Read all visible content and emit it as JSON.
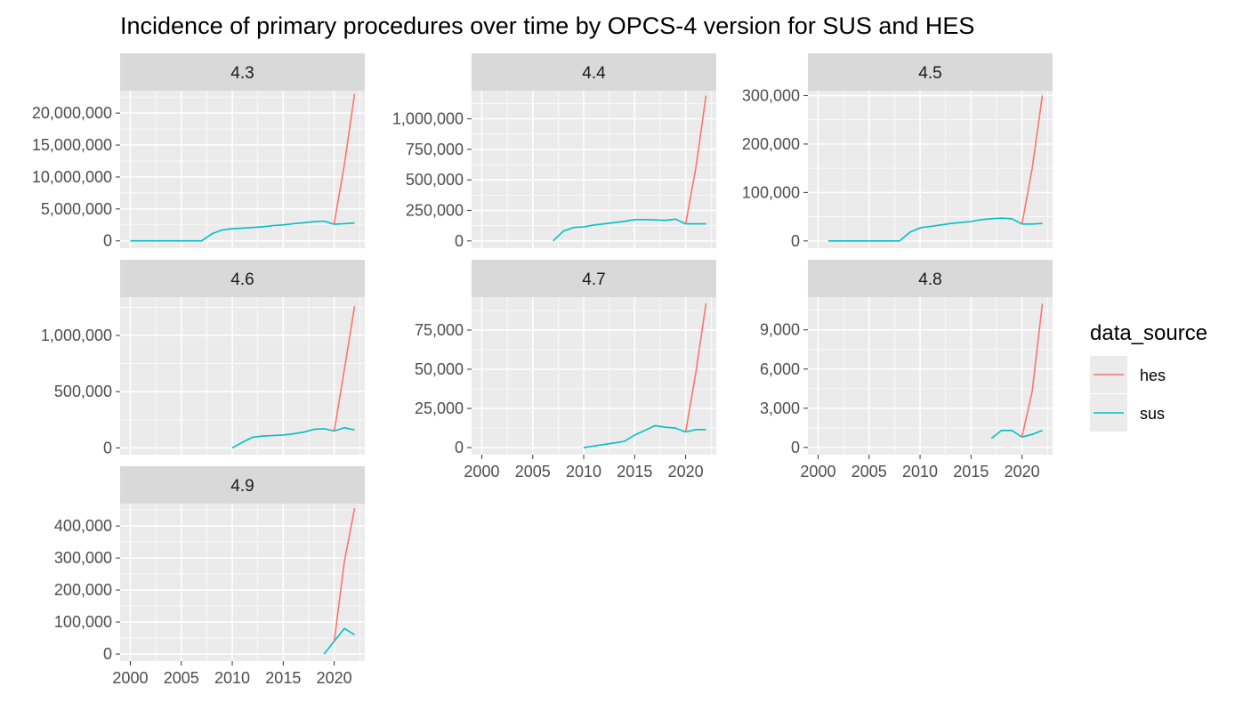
{
  "chart_data": {
    "type": "line",
    "title": "Incidence of primary procedures over time by OPCS-4 version for SUS and HES",
    "legend": {
      "title": "data_source",
      "placement": "right",
      "entries": [
        {
          "name": "hes",
          "color": "#F8766D"
        },
        {
          "name": "sus",
          "color": "#00BFC4"
        }
      ]
    },
    "x_axis": {
      "range": [
        1999,
        2023
      ],
      "ticks": [
        2000,
        2005,
        2010,
        2015,
        2020
      ],
      "tick_labels": [
        "2000",
        "2005",
        "2010",
        "2015",
        "2020"
      ]
    },
    "grid": true,
    "panels": [
      {
        "label": "4.3",
        "ylim": [
          -1150000,
          23500000
        ],
        "ticks": [
          0,
          5000000,
          10000000,
          15000000,
          20000000
        ],
        "tick_labels": [
          "0",
          "5,000,000",
          "10,000,000",
          "15,000,000",
          "20,000,000"
        ],
        "series": [
          {
            "name": "sus",
            "x": [
              2000,
              2001,
              2002,
              2003,
              2004,
              2005,
              2006,
              2007,
              2008,
              2009,
              2010,
              2011,
              2012,
              2013,
              2014,
              2015,
              2016,
              2017,
              2018,
              2019,
              2020,
              2021,
              2022
            ],
            "y": [
              0,
              0,
              0,
              0,
              0,
              0,
              0,
              0,
              1100000,
              1700000,
              1900000,
              2000000,
              2100000,
              2200000,
              2400000,
              2500000,
              2700000,
              2850000,
              3000000,
              3100000,
              2600000,
              2700000,
              2800000
            ]
          },
          {
            "name": "hes",
            "x": [
              2020,
              2021,
              2022
            ],
            "y": [
              2700000,
              12000000,
              23000000
            ]
          }
        ]
      },
      {
        "label": "4.4",
        "ylim": [
          -60000,
          1230000
        ],
        "ticks": [
          0,
          250000,
          500000,
          750000,
          1000000
        ],
        "tick_labels": [
          "0",
          "250,000",
          "500,000",
          "750,000",
          "1,000,000"
        ],
        "series": [
          {
            "name": "sus",
            "x": [
              2007,
              2008,
              2009,
              2010,
              2011,
              2012,
              2013,
              2014,
              2015,
              2016,
              2017,
              2018,
              2019,
              2020,
              2021,
              2022
            ],
            "y": [
              0,
              80000,
              110000,
              115000,
              130000,
              140000,
              150000,
              160000,
              175000,
              175000,
              172000,
              168000,
              178000,
              140000,
              140000,
              140000
            ]
          },
          {
            "name": "hes",
            "x": [
              2020,
              2021,
              2022
            ],
            "y": [
              140000,
              600000,
              1190000
            ]
          }
        ]
      },
      {
        "label": "4.5",
        "ylim": [
          -15000,
          310000
        ],
        "ticks": [
          0,
          100000,
          200000,
          300000
        ],
        "tick_labels": [
          "0",
          "100,000",
          "200,000",
          "300,000"
        ],
        "series": [
          {
            "name": "sus",
            "x": [
              2001,
              2002,
              2003,
              2004,
              2005,
              2006,
              2007,
              2008,
              2009,
              2010,
              2011,
              2012,
              2013,
              2014,
              2015,
              2016,
              2017,
              2018,
              2019,
              2020,
              2021,
              2022
            ],
            "y": [
              0,
              0,
              0,
              0,
              0,
              0,
              0,
              0,
              18000,
              27000,
              30000,
              33000,
              36000,
              38000,
              40000,
              44000,
              46000,
              47000,
              46000,
              35000,
              35000,
              36000
            ]
          },
          {
            "name": "hes",
            "x": [
              2020,
              2021,
              2022
            ],
            "y": [
              35000,
              150000,
              300000
            ]
          }
        ]
      },
      {
        "label": "4.6",
        "ylim": [
          -60000,
          1340000
        ],
        "ticks": [
          0,
          500000,
          1000000
        ],
        "tick_labels": [
          "0",
          "500,000",
          "1,000,000"
        ],
        "series": [
          {
            "name": "sus",
            "x": [
              2010,
              2011,
              2012,
              2013,
              2014,
              2015,
              2016,
              2017,
              2018,
              2019,
              2020,
              2021,
              2022
            ],
            "y": [
              0,
              50000,
              95000,
              105000,
              110000,
              115000,
              125000,
              140000,
              165000,
              170000,
              150000,
              180000,
              160000
            ]
          },
          {
            "name": "hes",
            "x": [
              2020,
              2021,
              2022
            ],
            "y": [
              150000,
              700000,
              1260000
            ]
          }
        ]
      },
      {
        "label": "4.7",
        "ylim": [
          -4500,
          96000
        ],
        "ticks": [
          0,
          25000,
          50000,
          75000
        ],
        "tick_labels": [
          "0",
          "25,000",
          "50,000",
          "75,000"
        ],
        "series": [
          {
            "name": "sus",
            "x": [
              2010,
              2011,
              2012,
              2013,
              2014,
              2015,
              2016,
              2017,
              2018,
              2019,
              2020,
              2021,
              2022
            ],
            "y": [
              0,
              1000,
              2000,
              3000,
              4000,
              8000,
              11000,
              14000,
              13000,
              12500,
              10000,
              11500,
              11500
            ]
          },
          {
            "name": "hes",
            "x": [
              2020,
              2021,
              2022
            ],
            "y": [
              10000,
              48000,
              92000
            ]
          }
        ]
      },
      {
        "label": "4.8",
        "ylim": [
          -550,
          11500
        ],
        "ticks": [
          0,
          3000,
          6000,
          9000
        ],
        "tick_labels": [
          "0",
          "3,000",
          "6,000",
          "9,000"
        ],
        "series": [
          {
            "name": "sus",
            "x": [
              2017,
              2018,
              2019,
              2020,
              2021,
              2022
            ],
            "y": [
              700,
              1300,
              1300,
              800,
              1000,
              1300
            ]
          },
          {
            "name": "hes",
            "x": [
              2020,
              2021,
              2022
            ],
            "y": [
              800,
              4300,
              11000
            ]
          }
        ]
      },
      {
        "label": "4.9",
        "ylim": [
          -22000,
          470000
        ],
        "ticks": [
          0,
          100000,
          200000,
          300000,
          400000
        ],
        "tick_labels": [
          "0",
          "100,000",
          "200,000",
          "300,000",
          "400,000"
        ],
        "series": [
          {
            "name": "sus",
            "x": [
              2019,
              2020,
              2021,
              2022
            ],
            "y": [
              0,
              40000,
              80000,
              60000
            ]
          },
          {
            "name": "hes",
            "x": [
              2020,
              2021,
              2022
            ],
            "y": [
              40000,
              290000,
              455000
            ]
          }
        ]
      }
    ]
  }
}
